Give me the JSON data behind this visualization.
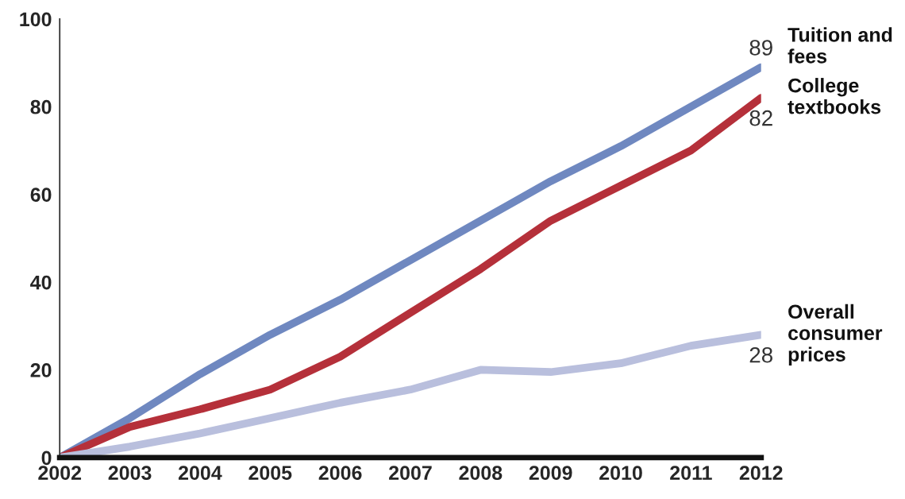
{
  "chart_data": {
    "type": "line",
    "x": [
      2002,
      2003,
      2004,
      2005,
      2006,
      2007,
      2008,
      2009,
      2010,
      2011,
      2012
    ],
    "series": [
      {
        "name": "Tuition and fees",
        "color": "#6f88c0",
        "values": [
          0,
          9,
          19,
          28,
          36,
          45,
          54,
          63,
          71,
          80,
          89
        ],
        "value_labels": [
          null,
          null,
          null,
          null,
          null,
          null,
          null,
          null,
          null,
          null,
          "89"
        ]
      },
      {
        "name": "College textbooks",
        "color": "#b5303a",
        "values": [
          0,
          7,
          11,
          15.5,
          23,
          33,
          43,
          54,
          62,
          70,
          82
        ],
        "value_labels": [
          null,
          null,
          null,
          null,
          null,
          null,
          null,
          null,
          null,
          null,
          "82"
        ]
      },
      {
        "name": "Overall consumer prices",
        "color": "#b9bfdd",
        "values": [
          0,
          2.5,
          5.5,
          9,
          12.5,
          15.5,
          20,
          19.5,
          21.5,
          25.5,
          28
        ],
        "value_labels": [
          null,
          null,
          null,
          null,
          null,
          null,
          null,
          null,
          null,
          null,
          "28"
        ]
      }
    ],
    "xlim": [
      2002,
      2012
    ],
    "xticks": [
      2002,
      2003,
      2004,
      2005,
      2006,
      2007,
      2008,
      2009,
      2010,
      2011,
      2012
    ],
    "ylim": [
      0,
      100
    ],
    "yticks": [
      0,
      20,
      40,
      60,
      80,
      100
    ],
    "grid": false,
    "legend": false,
    "marker": "none",
    "line_style": "solid"
  }
}
